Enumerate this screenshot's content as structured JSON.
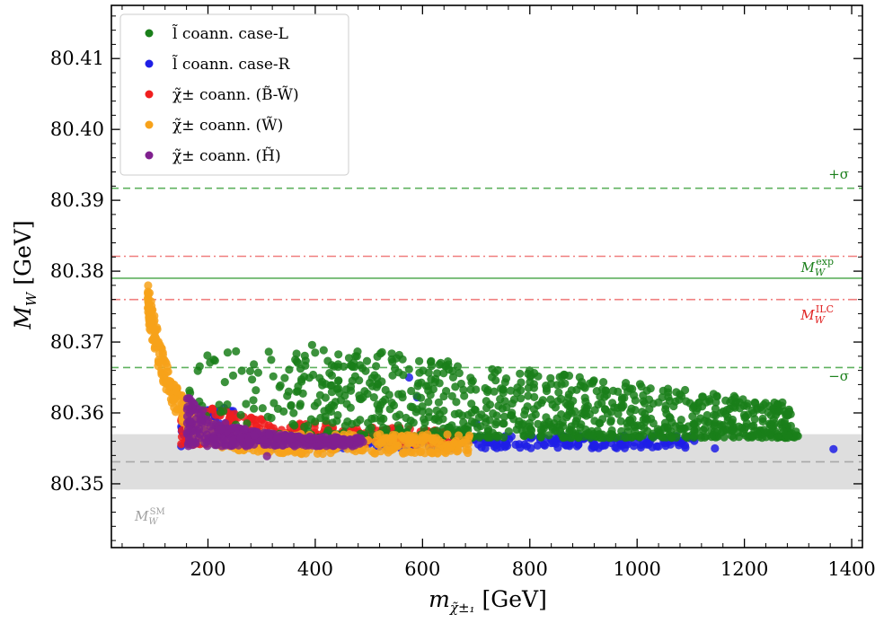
{
  "chart_data": {
    "type": "scatter",
    "xlabel": "m",
    "xlabel_sub": "χ̃±₁",
    "xlabel_unit": "[GeV]",
    "ylabel": "M",
    "ylabel_sub": "W",
    "ylabel_unit": "[GeV]",
    "xlim": [
      20,
      1420
    ],
    "ylim": [
      80.341,
      80.4175
    ],
    "xticks": [
      200,
      400,
      600,
      800,
      1000,
      1200,
      1400
    ],
    "yticks": [
      80.35,
      80.36,
      80.37,
      80.38,
      80.39,
      80.4,
      80.41
    ],
    "ytick_labels": [
      "80.35",
      "80.36",
      "80.37",
      "80.38",
      "80.39",
      "80.40",
      "80.41"
    ],
    "xtick_labels": [
      "200",
      "400",
      "600",
      "800",
      "1000",
      "1200",
      "1400"
    ],
    "grid": false,
    "legend_position": "top-left",
    "series": [
      {
        "name": "l̃ coann. case-L",
        "color": "#1a7f1a"
      },
      {
        "name": "l̃ coann. case-R",
        "color": "#1f1fe6"
      },
      {
        "name": "χ̃± coann. (B̃-W̃)",
        "color": "#f01f1f"
      },
      {
        "name": "χ̃± coann. (W̃)",
        "color": "#f7a21a"
      },
      {
        "name": "χ̃± coann. (H̃)",
        "color": "#80208f"
      }
    ],
    "reference_lines": {
      "exp_central": 80.379,
      "plus_sigma": 80.3917,
      "minus_sigma": 80.3664,
      "ilc_upper": 80.3821,
      "ilc_lower": 80.376,
      "sm_central": 80.3531,
      "sm_band": [
        80.3492,
        80.357
      ]
    },
    "annotations": {
      "plus_sigma": "+σ",
      "minus_sigma": "−σ",
      "m_exp_main": "M",
      "m_exp_sub": "W",
      "m_exp_sup": "exp",
      "m_ilc_main": "M",
      "m_ilc_sub": "W",
      "m_ilc_sup": "ILC",
      "m_sm_main": "M",
      "m_sm_sub": "W",
      "m_sm_sup": "SM"
    },
    "colors": {
      "green_line": "#5fb15f",
      "red_line": "#f07f7f",
      "grey_line": "#a8a8a8",
      "band": "#dedede",
      "sm_label": "#a0a0a0"
    }
  }
}
